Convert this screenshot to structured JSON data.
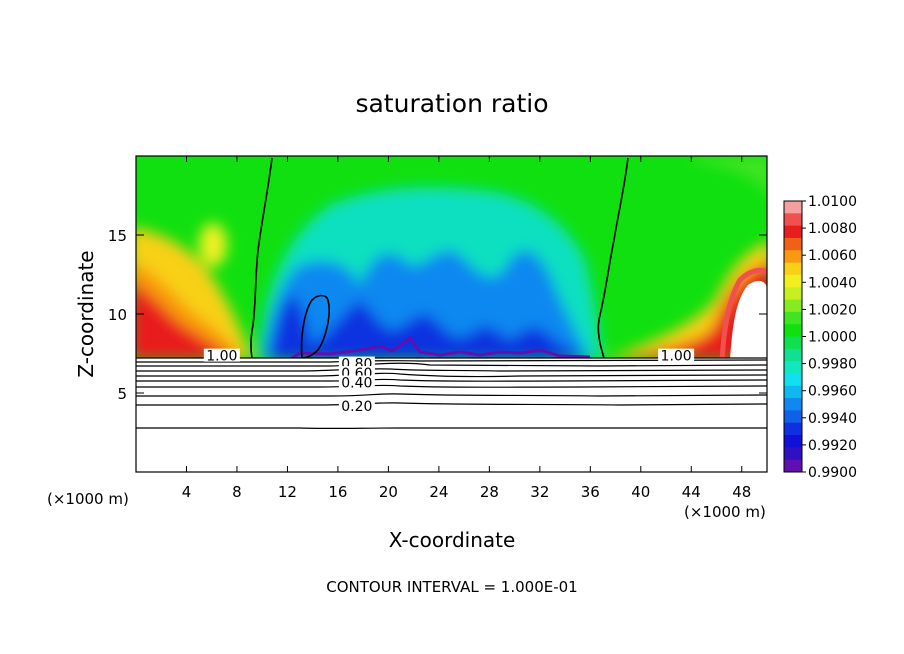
{
  "chart_data": {
    "type": "heatmap",
    "title": "saturation ratio",
    "xlabel": "X-coordinate",
    "ylabel": "Z-coordinate",
    "x_unit_left": "(×1000 m)",
    "x_unit_right": "(×1000 m)",
    "xlim": [
      0,
      50
    ],
    "ylim": [
      0,
      20
    ],
    "x_ticks": [
      4,
      8,
      12,
      16,
      20,
      24,
      28,
      32,
      36,
      40,
      44,
      48
    ],
    "y_ticks": [
      5,
      10,
      15
    ],
    "footer": "CONTOUR INTERVAL = 1.000E-01",
    "colorbar": {
      "labels": [
        "1.0100",
        "1.0080",
        "1.0060",
        "1.0040",
        "1.0020",
        "1.0000",
        "0.9980",
        "0.9960",
        "0.9940",
        "0.9920",
        "0.9900"
      ],
      "colors_top_to_bottom": [
        "#f4a0a0",
        "#f05050",
        "#e81e1e",
        "#f06018",
        "#f89a10",
        "#f8d018",
        "#f0f020",
        "#c8f020",
        "#84ec20",
        "#40e420",
        "#10e010",
        "#10e050",
        "#10e090",
        "#10e8c0",
        "#10e0f0",
        "#10b8f0",
        "#1088f0",
        "#1060e8",
        "#1030e0",
        "#1010d8",
        "#3010c0",
        "#6010b0"
      ]
    },
    "surface_z": 7.3,
    "contour_labels": [
      {
        "text": "1.00",
        "x": 6.8,
        "z": 7.3
      },
      {
        "text": "1.00",
        "x": 42.8,
        "z": 7.3
      },
      {
        "text": "0.80",
        "x": 17.5,
        "z": 6.8
      },
      {
        "text": "0.60",
        "x": 17.5,
        "z": 6.2
      },
      {
        "text": "0.40",
        "x": 17.5,
        "z": 5.6
      },
      {
        "text": "0.20",
        "x": 17.5,
        "z": 4.1
      }
    ]
  }
}
